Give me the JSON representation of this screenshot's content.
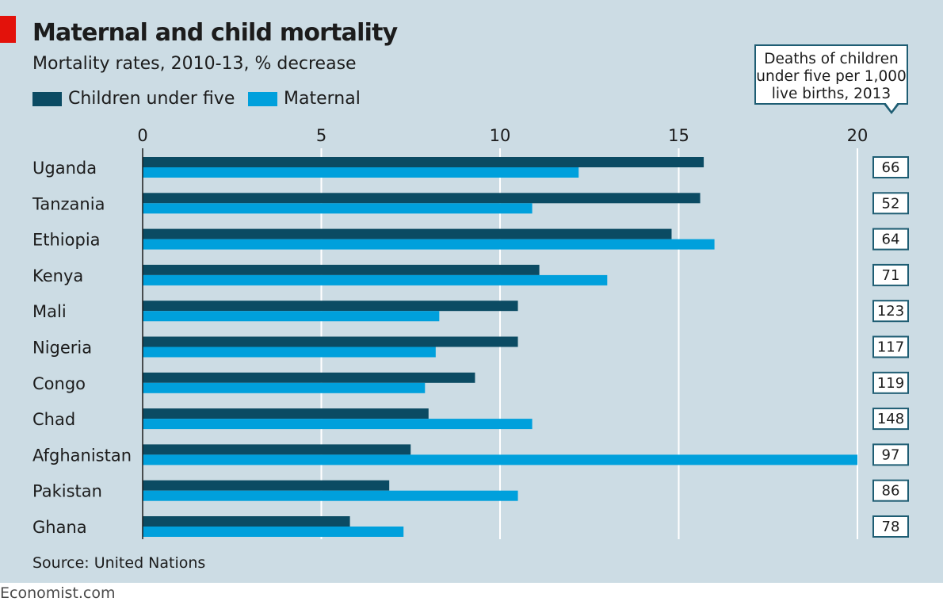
{
  "header": {
    "title": "Maternal and child mortality",
    "subtitle": "Mortality rates, 2010-13, % decrease"
  },
  "legend": {
    "children_label": "Children under five",
    "maternal_label": "Maternal"
  },
  "callout": {
    "line1": "Deaths of children",
    "line2": "under five per 1,000",
    "line3": "live births, 2013"
  },
  "footer": {
    "source": "Source: United Nations",
    "brand": "Economist.com"
  },
  "colors": {
    "background": "#ccdce4",
    "children": "#0b4b63",
    "maternal": "#00a0dc",
    "accent": "#e3120b",
    "box_border": "#1e5d73"
  },
  "chart_data": {
    "type": "bar",
    "orientation": "horizontal",
    "categories": [
      "Uganda",
      "Tanzania",
      "Ethiopia",
      "Kenya",
      "Mali",
      "Nigeria",
      "Congo",
      "Chad",
      "Afghanistan",
      "Pakistan",
      "Ghana"
    ],
    "series": [
      {
        "name": "Children under five",
        "values": [
          15.7,
          15.6,
          14.8,
          11.1,
          10.5,
          10.5,
          9.3,
          8.0,
          7.5,
          6.9,
          5.8
        ]
      },
      {
        "name": "Maternal",
        "values": [
          12.2,
          10.9,
          16.0,
          13.0,
          8.3,
          8.2,
          7.9,
          10.9,
          20.0,
          10.5,
          7.3
        ]
      }
    ],
    "under_five_deaths_per_1000": [
      66,
      52,
      64,
      71,
      123,
      117,
      119,
      148,
      97,
      86,
      78
    ],
    "xlim": [
      0,
      20
    ],
    "xticks": [
      0,
      5,
      10,
      15,
      20
    ],
    "grid": true,
    "legend_position": "top-left"
  }
}
